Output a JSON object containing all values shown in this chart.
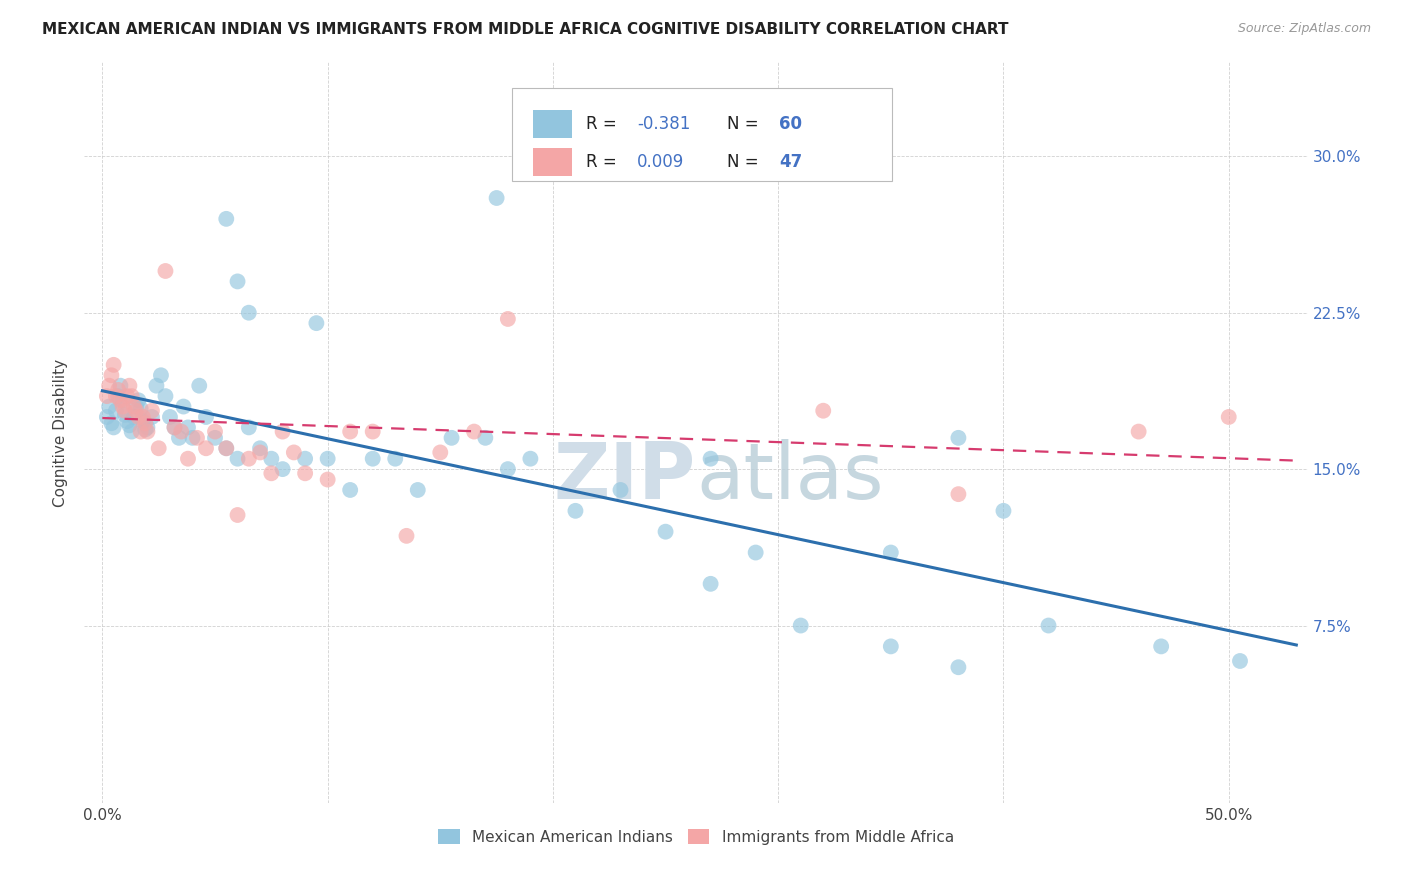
{
  "title": "MEXICAN AMERICAN INDIAN VS IMMIGRANTS FROM MIDDLE AFRICA COGNITIVE DISABILITY CORRELATION CHART",
  "source": "Source: ZipAtlas.com",
  "ylabel": "Cognitive Disability",
  "x_tick_positions": [
    0.0,
    0.1,
    0.2,
    0.3,
    0.4,
    0.5
  ],
  "x_tick_labels": [
    "0.0%",
    "",
    "",
    "",
    "",
    "50.0%"
  ],
  "y_tick_positions": [
    0.075,
    0.15,
    0.225,
    0.3
  ],
  "y_tick_labels": [
    "7.5%",
    "15.0%",
    "22.5%",
    "30.0%"
  ],
  "xlim": [
    -0.008,
    0.535
  ],
  "ylim": [
    -0.01,
    0.345
  ],
  "legend_labels": [
    "Mexican American Indians",
    "Immigrants from Middle Africa"
  ],
  "R_blue": -0.381,
  "N_blue": 60,
  "R_pink": 0.009,
  "N_pink": 47,
  "blue_color": "#92c5de",
  "pink_color": "#f4a6a6",
  "trendline_blue_color": "#2c6fad",
  "trendline_pink_color": "#d63b6e",
  "watermark_color": "#d0dde8",
  "blue_points_x": [
    0.002,
    0.003,
    0.004,
    0.005,
    0.006,
    0.007,
    0.008,
    0.009,
    0.01,
    0.011,
    0.012,
    0.013,
    0.014,
    0.015,
    0.016,
    0.017,
    0.018,
    0.019,
    0.02,
    0.022,
    0.024,
    0.026,
    0.028,
    0.03,
    0.032,
    0.034,
    0.036,
    0.038,
    0.04,
    0.043,
    0.046,
    0.05,
    0.055,
    0.06,
    0.065,
    0.07,
    0.075,
    0.08,
    0.09,
    0.1,
    0.11,
    0.12,
    0.13,
    0.14,
    0.155,
    0.17,
    0.18,
    0.19,
    0.21,
    0.23,
    0.25,
    0.27,
    0.29,
    0.31,
    0.35,
    0.38,
    0.4,
    0.42,
    0.47,
    0.505
  ],
  "blue_points_y": [
    0.175,
    0.18,
    0.172,
    0.17,
    0.178,
    0.185,
    0.19,
    0.183,
    0.176,
    0.173,
    0.171,
    0.168,
    0.175,
    0.18,
    0.183,
    0.179,
    0.173,
    0.169,
    0.17,
    0.175,
    0.19,
    0.195,
    0.185,
    0.175,
    0.17,
    0.165,
    0.18,
    0.17,
    0.165,
    0.19,
    0.175,
    0.165,
    0.16,
    0.155,
    0.17,
    0.16,
    0.155,
    0.15,
    0.155,
    0.155,
    0.14,
    0.155,
    0.155,
    0.14,
    0.165,
    0.165,
    0.15,
    0.155,
    0.13,
    0.14,
    0.12,
    0.095,
    0.11,
    0.075,
    0.11,
    0.165,
    0.13,
    0.075,
    0.065,
    0.058
  ],
  "blue_extra_x": [
    0.055,
    0.06,
    0.065,
    0.095,
    0.175,
    0.27,
    0.35,
    0.38
  ],
  "blue_extra_y": [
    0.27,
    0.24,
    0.225,
    0.22,
    0.28,
    0.155,
    0.065,
    0.055
  ],
  "pink_points_x": [
    0.002,
    0.003,
    0.004,
    0.005,
    0.006,
    0.007,
    0.008,
    0.009,
    0.01,
    0.011,
    0.012,
    0.013,
    0.014,
    0.015,
    0.016,
    0.017,
    0.018,
    0.019,
    0.02,
    0.022,
    0.025,
    0.028,
    0.032,
    0.035,
    0.038,
    0.042,
    0.046,
    0.05,
    0.055,
    0.06,
    0.065,
    0.07,
    0.075,
    0.08,
    0.085,
    0.09,
    0.1,
    0.11,
    0.12,
    0.135,
    0.15,
    0.165,
    0.18,
    0.32,
    0.38,
    0.46,
    0.5
  ],
  "pink_points_y": [
    0.185,
    0.19,
    0.195,
    0.2,
    0.185,
    0.188,
    0.183,
    0.18,
    0.178,
    0.185,
    0.19,
    0.185,
    0.18,
    0.178,
    0.175,
    0.168,
    0.175,
    0.172,
    0.168,
    0.178,
    0.16,
    0.245,
    0.17,
    0.168,
    0.155,
    0.165,
    0.16,
    0.168,
    0.16,
    0.128,
    0.155,
    0.158,
    0.148,
    0.168,
    0.158,
    0.148,
    0.145,
    0.168,
    0.168,
    0.118,
    0.158,
    0.168,
    0.222,
    0.178,
    0.138,
    0.168,
    0.175
  ]
}
